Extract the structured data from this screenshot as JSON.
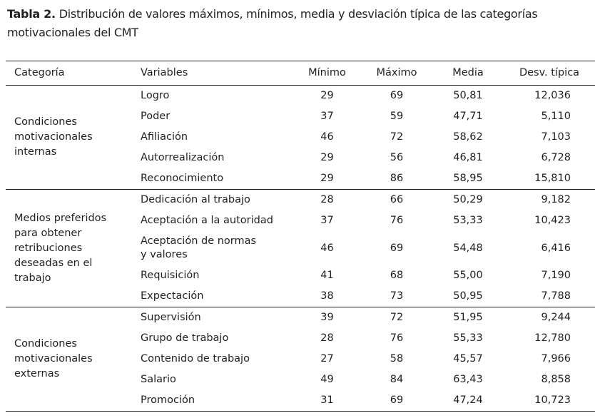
{
  "title": {
    "label": "Tabla 2.",
    "text": "Distribución de valores máximos, mínimos, media y desviación típica de las categorías motivacionales del CMT"
  },
  "table": {
    "headers": [
      "Categoría",
      "Variables",
      "Mínimo",
      "Máximo",
      "Media",
      "Desv. típica"
    ],
    "groups": [
      {
        "category": "Condiciones\nmotivacionales\ninternas",
        "rows": [
          {
            "variable": "Logro",
            "min": "29",
            "max": "69",
            "media": "50,81",
            "desv": "12,036"
          },
          {
            "variable": "Poder",
            "min": "37",
            "max": "59",
            "media": "47,71",
            "desv": "5,110"
          },
          {
            "variable": "Afiliación",
            "min": "46",
            "max": "72",
            "media": "58,62",
            "desv": "7,103"
          },
          {
            "variable": "Autorrealización",
            "min": "29",
            "max": "56",
            "media": "46,81",
            "desv": "6,728"
          },
          {
            "variable": "Reconocimiento",
            "min": "29",
            "max": "86",
            "media": "58,95",
            "desv": "15,810"
          }
        ]
      },
      {
        "category": "Medios preferidos\npara obtener\nretribuciones\ndeseadas en el\ntrabajo",
        "rows": [
          {
            "variable": "Dedicación al trabajo",
            "min": "28",
            "max": "66",
            "media": "50,29",
            "desv": "9,182"
          },
          {
            "variable": "Aceptación a la autoridad",
            "min": "37",
            "max": "76",
            "media": "53,33",
            "desv": "10,423"
          },
          {
            "variable": "Aceptación de normas\ny valores",
            "min": "46",
            "max": "69",
            "media": "54,48",
            "desv": "6,416"
          },
          {
            "variable": "Requisición",
            "min": "41",
            "max": "68",
            "media": "55,00",
            "desv": "7,190"
          },
          {
            "variable": "Expectación",
            "min": "38",
            "max": "73",
            "media": "50,95",
            "desv": "7,788"
          }
        ]
      },
      {
        "category": "Condiciones\nmotivacionales\nexternas",
        "rows": [
          {
            "variable": "Supervisión",
            "min": "39",
            "max": "72",
            "media": "51,95",
            "desv": "9,244"
          },
          {
            "variable": "Grupo de trabajo",
            "min": "28",
            "max": "76",
            "media": "55,33",
            "desv": "12,780"
          },
          {
            "variable": "Contenido de trabajo",
            "min": "27",
            "max": "58",
            "media": "45,57",
            "desv": "7,966"
          },
          {
            "variable": "Salario",
            "min": "49",
            "max": "84",
            "media": "63,43",
            "desv": "8,858"
          },
          {
            "variable": "Promoción",
            "min": "31",
            "max": "69",
            "media": "47,24",
            "desv": "10,723"
          }
        ]
      }
    ]
  }
}
